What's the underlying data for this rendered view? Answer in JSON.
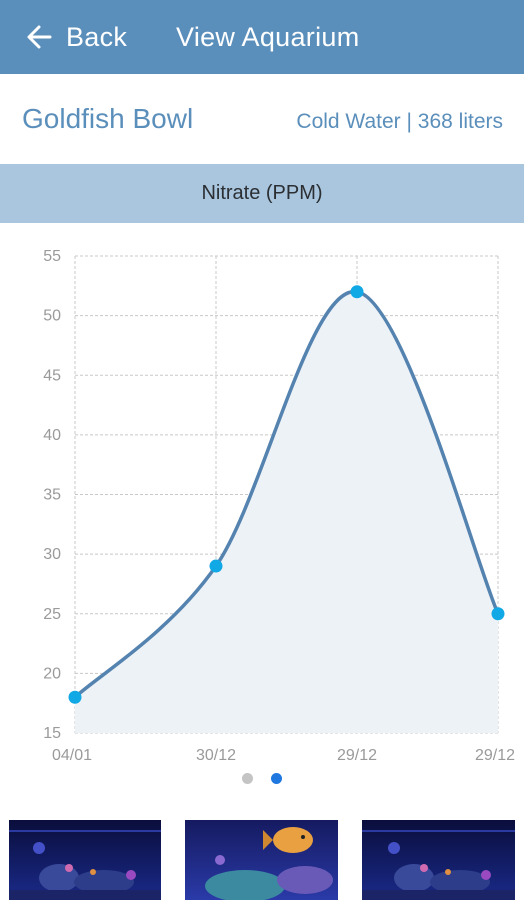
{
  "topbar": {
    "back_label": "Back",
    "title": "View Aquarium",
    "color": "#5b8fbb"
  },
  "aquarium": {
    "name": "Goldfish Bowl",
    "meta": "Cold Water | 368 liters"
  },
  "parameter": {
    "label": "Nitrate (PPM)"
  },
  "chart_data": {
    "type": "line",
    "title": "Nitrate (PPM)",
    "categories": [
      "04/01",
      "30/12",
      "29/12",
      "29/12"
    ],
    "values": [
      18,
      29,
      52,
      25
    ],
    "ylim": [
      15,
      55
    ],
    "yticks": [
      15,
      20,
      25,
      30,
      35,
      40,
      45,
      50,
      55
    ],
    "smooth": true,
    "grid": true,
    "line_color": "#5583b0",
    "point_color": "#11a8e6",
    "fill_color": "#edf2f7"
  },
  "pager": {
    "count": 2,
    "active": 1
  },
  "photos": [
    {
      "icon": "aquarium-photo-1"
    },
    {
      "icon": "aquarium-photo-2"
    },
    {
      "icon": "aquarium-photo-3"
    }
  ]
}
